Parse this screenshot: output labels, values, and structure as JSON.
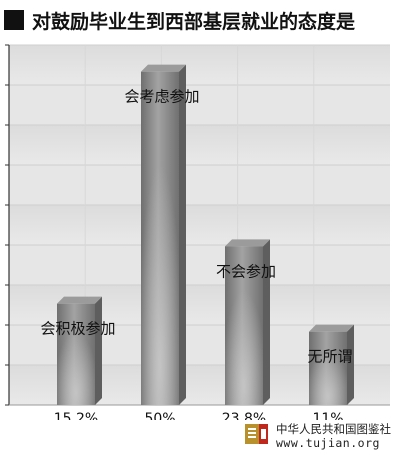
{
  "title": "对鼓励毕业生到西部基层就业的态度是",
  "chart_data": {
    "type": "bar",
    "categories": [
      "会积极参加",
      "会考虑参加",
      "不会参加",
      "无所谓"
    ],
    "values": [
      15.2,
      50,
      23.8,
      11
    ],
    "value_labels": [
      "15.2%",
      "50%",
      "23.8%",
      "11%"
    ],
    "ylim": [
      0,
      54
    ],
    "grid": true,
    "bar_color": "#8c8c8c",
    "xlabel": "",
    "ylabel": ""
  },
  "footer": {
    "logo_icon": "tujian-logo-icon",
    "name": "中华人民共和国图鉴社",
    "url": "www.tujian.org",
    "logo_color": "#b8912c",
    "accent_color": "#c0281e"
  }
}
